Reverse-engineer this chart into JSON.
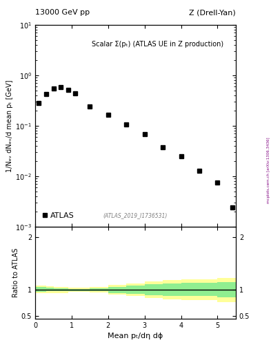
{
  "title_left": "13000 GeV pp",
  "title_right": "Z (Drell-Yan)",
  "main_annotation": "Scalar Σ(pₜ) (ATLAS UE in Z production)",
  "atlas_label": "ATLAS",
  "inspire_label": "(ATLAS_2019_I1736531)",
  "ylabel_main": "1/Nₑᵥ dNₑᵥ/d mean pₜ [GeV]",
  "ylabel_ratio": "Ratio to ATLAS",
  "xlabel": "Mean pₜ/dη dϕ",
  "right_label": "mcplots.cern.ch [arXiv:1306.3436]",
  "data_x": [
    0.1,
    0.3,
    0.5,
    0.7,
    0.9,
    1.1,
    1.5,
    2.0,
    2.5,
    3.0,
    3.5,
    4.0,
    4.5,
    5.0,
    5.4
  ],
  "data_y": [
    0.28,
    0.42,
    0.55,
    0.58,
    0.52,
    0.44,
    0.24,
    0.165,
    0.105,
    0.068,
    0.038,
    0.025,
    0.013,
    0.0075,
    0.0024
  ],
  "ylim_main": [
    0.001,
    10
  ],
  "ylim_ratio": [
    0.45,
    2.2
  ],
  "yticks_ratio": [
    0.5,
    1.0,
    2.0
  ],
  "xlim": [
    0,
    5.5
  ],
  "xticks": [
    0,
    1,
    2,
    3,
    4,
    5
  ],
  "band_x": [
    0.0,
    0.15,
    0.3,
    0.5,
    0.7,
    0.9,
    1.1,
    1.5,
    2.0,
    2.5,
    3.0,
    3.5,
    4.0,
    4.5,
    5.0,
    5.5
  ],
  "band_green_upper": [
    1.05,
    1.05,
    1.04,
    1.03,
    1.03,
    1.02,
    1.02,
    1.03,
    1.06,
    1.08,
    1.1,
    1.12,
    1.13,
    1.13,
    1.15,
    1.17
  ],
  "band_green_lower": [
    0.96,
    0.96,
    0.97,
    0.97,
    0.97,
    0.98,
    0.98,
    0.97,
    0.94,
    0.92,
    0.9,
    0.88,
    0.88,
    0.88,
    0.85,
    0.83
  ],
  "band_yellow_upper": [
    1.08,
    1.08,
    1.07,
    1.06,
    1.06,
    1.04,
    1.04,
    1.05,
    1.09,
    1.12,
    1.16,
    1.18,
    1.2,
    1.2,
    1.22,
    1.25
  ],
  "band_yellow_lower": [
    0.93,
    0.93,
    0.94,
    0.94,
    0.94,
    0.96,
    0.96,
    0.95,
    0.91,
    0.88,
    0.84,
    0.82,
    0.8,
    0.8,
    0.76,
    0.72
  ],
  "marker_color": "black",
  "marker": "s",
  "marker_size": 5,
  "green_color": "#90EE90",
  "yellow_color": "#FFFF99",
  "bg_color": "white"
}
